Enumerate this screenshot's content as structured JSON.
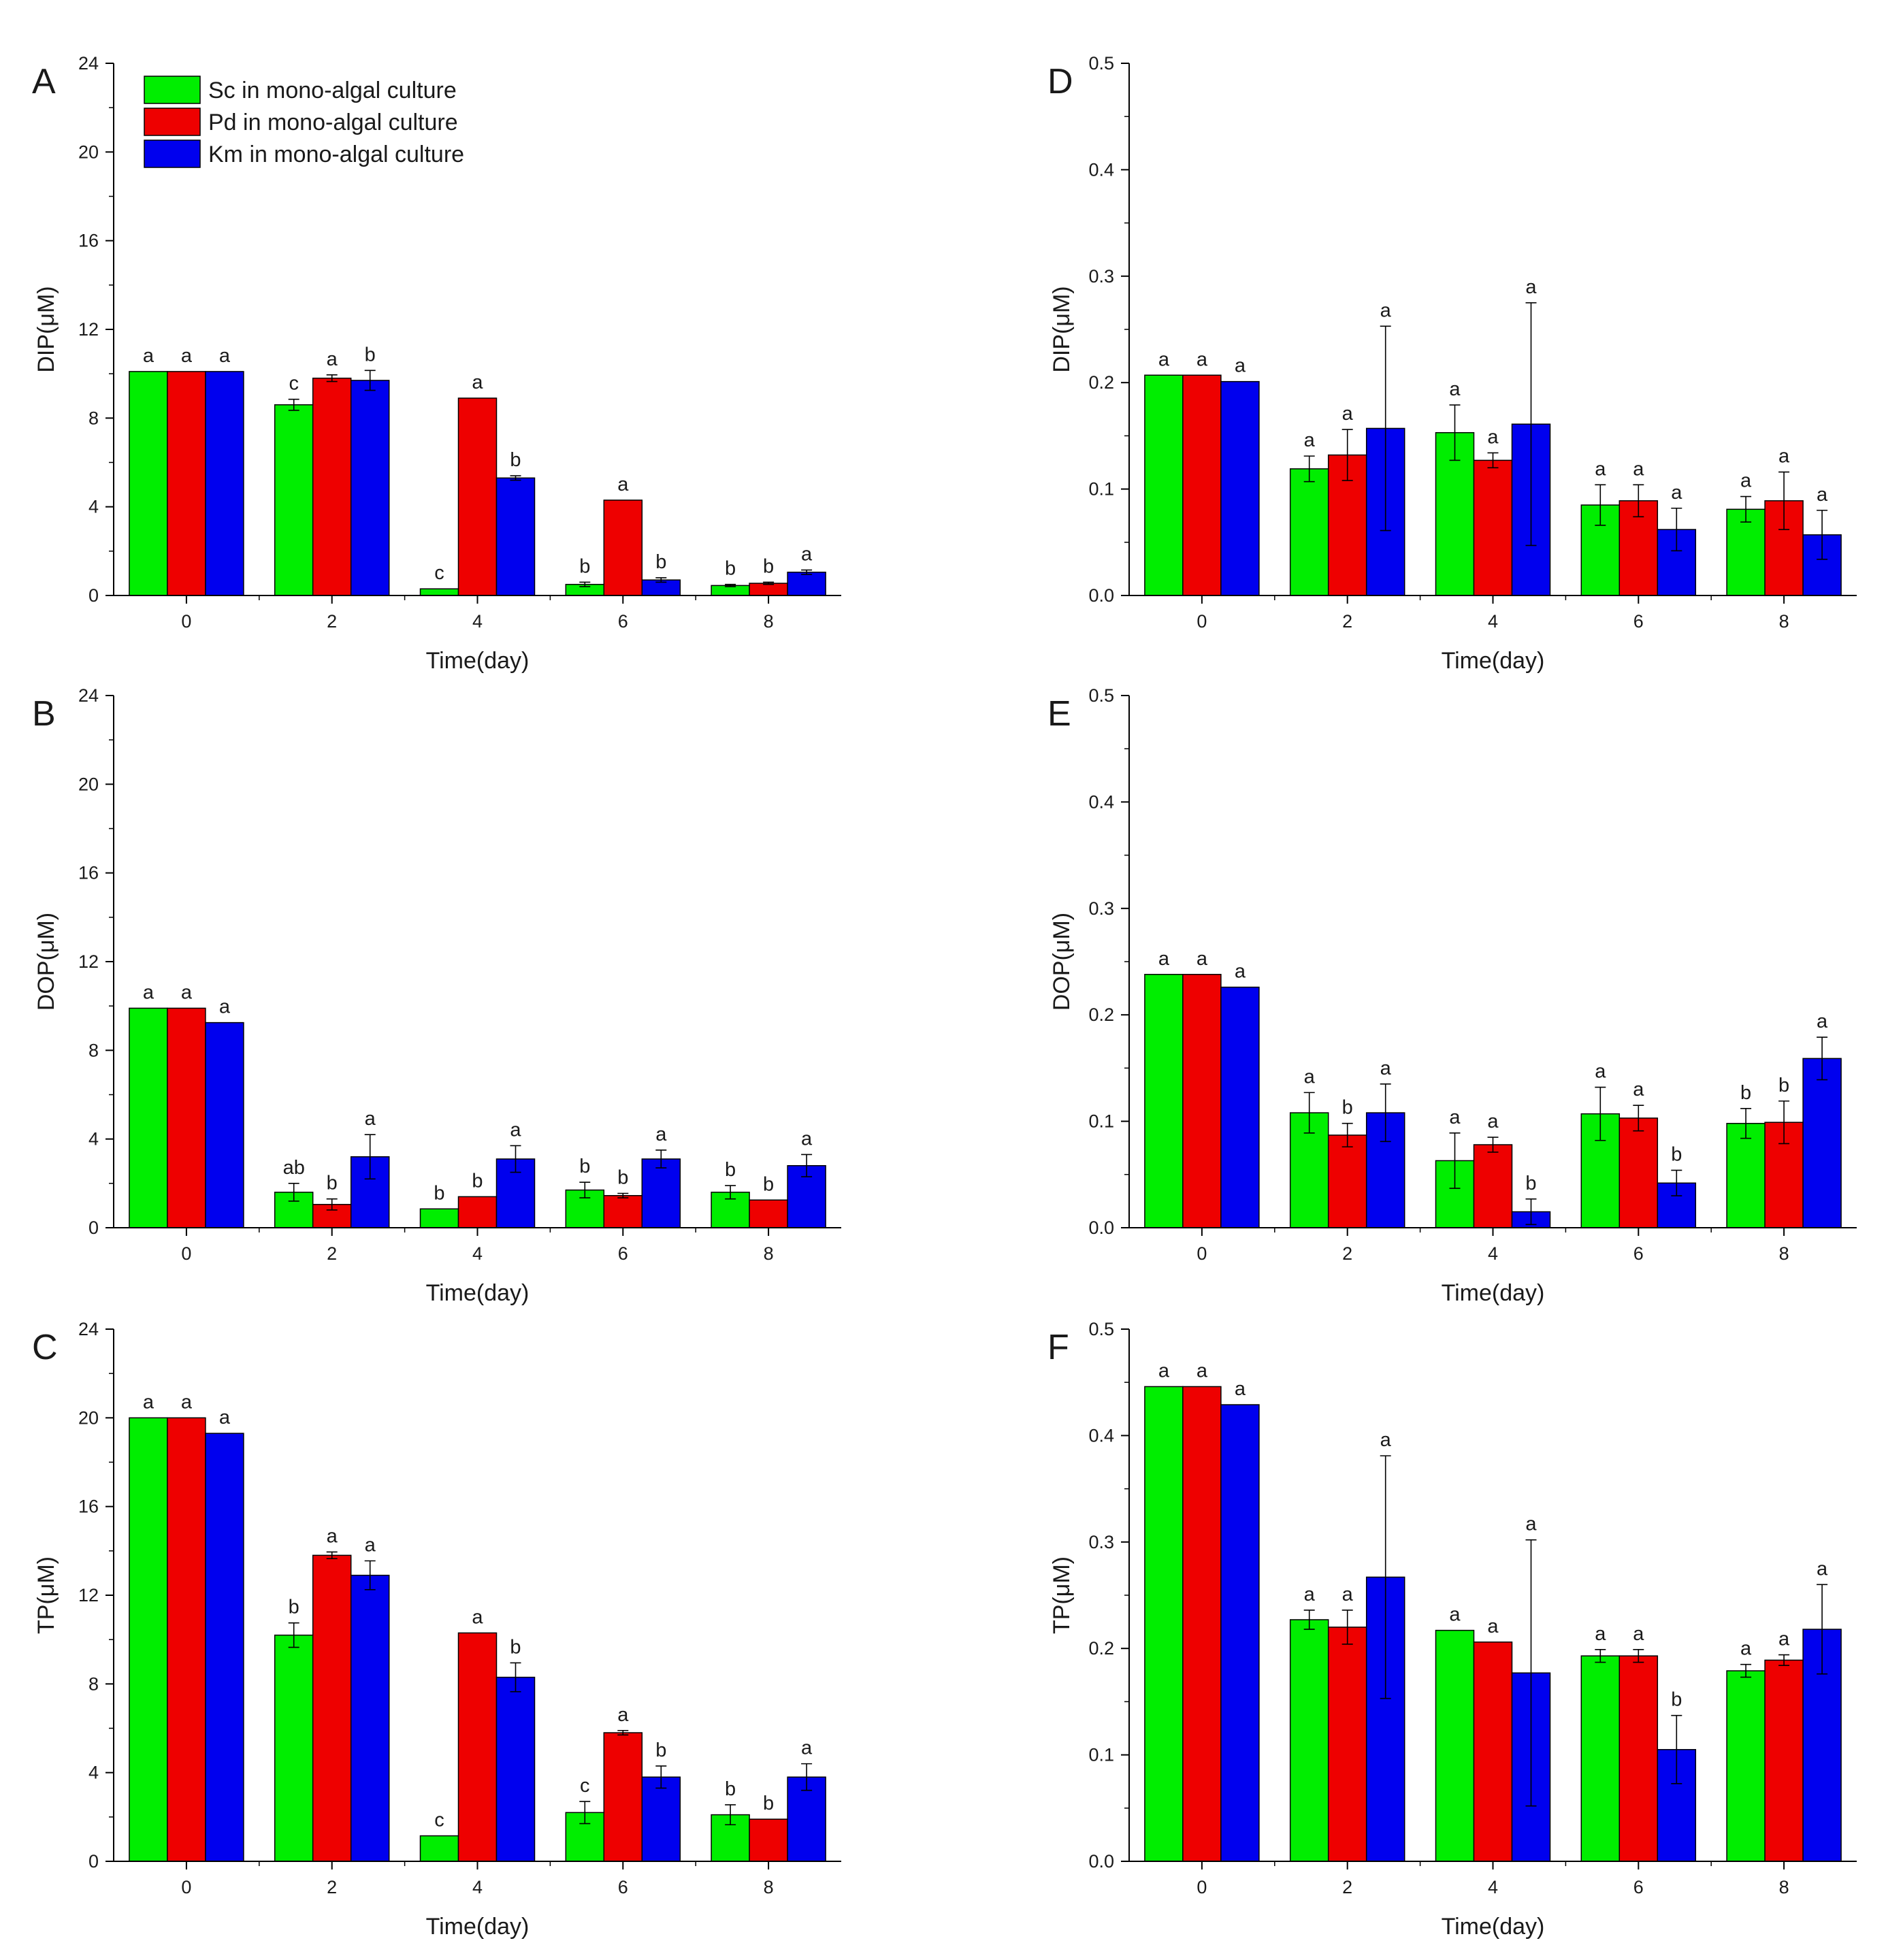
{
  "chart_data": [
    {
      "panel": "A",
      "type": "bar",
      "categories": [
        "0",
        "2",
        "4",
        "6",
        "8"
      ],
      "xlabel": "Time(day)",
      "ylabel": "DIP(μM)",
      "ylim": [
        0,
        24
      ],
      "yticks": [
        "0",
        "4",
        "8",
        "12",
        "16",
        "20",
        "24"
      ],
      "series": [
        {
          "name": "Sc in mono-algal culture",
          "values": [
            10.1,
            8.6,
            0.3,
            0.5,
            0.45
          ],
          "errors": [
            0,
            0.25,
            0,
            0.1,
            0.05
          ],
          "labels": [
            "a",
            "c",
            "c",
            "b",
            "b"
          ]
        },
        {
          "name": "Pd in mono-algal culture",
          "values": [
            10.1,
            9.8,
            8.9,
            4.3,
            0.55
          ],
          "errors": [
            0,
            0.15,
            0,
            0,
            0.05
          ],
          "labels": [
            "a",
            "a",
            "a",
            "a",
            "b"
          ]
        },
        {
          "name": "Km in mono-algal culture",
          "values": [
            10.1,
            9.7,
            5.3,
            0.7,
            1.05
          ],
          "errors": [
            0,
            0.45,
            0.1,
            0.1,
            0.1
          ],
          "labels": [
            "a",
            "b",
            "b",
            "b",
            "a"
          ]
        }
      ]
    },
    {
      "panel": "B",
      "type": "bar",
      "categories": [
        "0",
        "2",
        "4",
        "6",
        "8"
      ],
      "xlabel": "Time(day)",
      "ylabel": "DOP(μM)",
      "ylim": [
        0,
        24
      ],
      "yticks": [
        "0",
        "4",
        "8",
        "12",
        "16",
        "20",
        "24"
      ],
      "series": [
        {
          "name": "Sc in mono-algal culture",
          "values": [
            9.9,
            1.6,
            0.85,
            1.7,
            1.6
          ],
          "errors": [
            0,
            0.4,
            0,
            0.35,
            0.3
          ],
          "labels": [
            "a",
            "ab",
            "b",
            "b",
            "b"
          ]
        },
        {
          "name": "Pd in mono-algal culture",
          "values": [
            9.9,
            1.05,
            1.4,
            1.45,
            1.25
          ],
          "errors": [
            0,
            0.25,
            0,
            0.1,
            0
          ],
          "labels": [
            "a",
            "b",
            "b",
            "b",
            "b"
          ]
        },
        {
          "name": "Km in mono-algal culture",
          "values": [
            9.25,
            3.2,
            3.1,
            3.1,
            2.8
          ],
          "errors": [
            0,
            1.0,
            0.6,
            0.4,
            0.5
          ],
          "labels": [
            "a",
            "a",
            "a",
            "a",
            "a"
          ]
        }
      ]
    },
    {
      "panel": "C",
      "type": "bar",
      "categories": [
        "0",
        "2",
        "4",
        "6",
        "8"
      ],
      "xlabel": "Time(day)",
      "ylabel": "TP(μM)",
      "ylim": [
        0,
        24
      ],
      "yticks": [
        "0",
        "4",
        "8",
        "12",
        "16",
        "20",
        "24"
      ],
      "series": [
        {
          "name": "Sc in mono-algal culture",
          "values": [
            20.0,
            10.2,
            1.15,
            2.2,
            2.1
          ],
          "errors": [
            0,
            0.55,
            0,
            0.5,
            0.45
          ],
          "labels": [
            "a",
            "b",
            "c",
            "c",
            "b"
          ]
        },
        {
          "name": "Pd in mono-algal culture",
          "values": [
            20.0,
            13.8,
            10.3,
            5.8,
            1.9
          ],
          "errors": [
            0,
            0.15,
            0,
            0.1,
            0
          ],
          "labels": [
            "a",
            "a",
            "a",
            "a",
            "b"
          ]
        },
        {
          "name": "Km in mono-algal culture",
          "values": [
            19.3,
            12.9,
            8.3,
            3.8,
            3.8
          ],
          "errors": [
            0,
            0.65,
            0.65,
            0.5,
            0.6
          ],
          "labels": [
            "a",
            "a",
            "b",
            "b",
            "a"
          ]
        }
      ]
    },
    {
      "panel": "D",
      "type": "bar",
      "categories": [
        "0",
        "2",
        "4",
        "6",
        "8"
      ],
      "xlabel": "Time(day)",
      "ylabel": "DIP(μM)",
      "ylim": [
        0,
        0.5
      ],
      "yticks": [
        "0.0",
        "0.1",
        "0.2",
        "0.3",
        "0.4",
        "0.5"
      ],
      "series": [
        {
          "name": "Sc in mono-algal culture",
          "values": [
            0.207,
            0.119,
            0.153,
            0.085,
            0.081
          ],
          "errors": [
            0,
            0.012,
            0.026,
            0.019,
            0.012
          ],
          "labels": [
            "a",
            "a",
            "a",
            "a",
            "a"
          ]
        },
        {
          "name": "Pd in mono-algal culture",
          "values": [
            0.207,
            0.132,
            0.127,
            0.089,
            0.089
          ],
          "errors": [
            0,
            0.024,
            0.007,
            0.015,
            0.027
          ],
          "labels": [
            "a",
            "a",
            "a",
            "a",
            "a"
          ]
        },
        {
          "name": "Km in mono-algal culture",
          "values": [
            0.201,
            0.157,
            0.161,
            0.062,
            0.057
          ],
          "errors": [
            0,
            0.096,
            0.114,
            0.02,
            0.023
          ],
          "labels": [
            "a",
            "a",
            "a",
            "a",
            "a"
          ]
        }
      ]
    },
    {
      "panel": "E",
      "type": "bar",
      "categories": [
        "0",
        "2",
        "4",
        "6",
        "8"
      ],
      "xlabel": "Time(day)",
      "ylabel": "DOP(μM)",
      "ylim": [
        0,
        0.5
      ],
      "yticks": [
        "0.0",
        "0.1",
        "0.2",
        "0.3",
        "0.4",
        "0.5"
      ],
      "series": [
        {
          "name": "Sc in mono-algal culture",
          "values": [
            0.238,
            0.108,
            0.063,
            0.107,
            0.098
          ],
          "errors": [
            0,
            0.019,
            0.026,
            0.025,
            0.014
          ],
          "labels": [
            "a",
            "a",
            "a",
            "a",
            "b"
          ]
        },
        {
          "name": "Pd in mono-algal culture",
          "values": [
            0.238,
            0.087,
            0.078,
            0.103,
            0.099
          ],
          "errors": [
            0,
            0.011,
            0.007,
            0.012,
            0.02
          ],
          "labels": [
            "a",
            "b",
            "a",
            "a",
            "b"
          ]
        },
        {
          "name": "Km in mono-algal culture",
          "values": [
            0.226,
            0.108,
            0.015,
            0.042,
            0.159
          ],
          "errors": [
            0,
            0.027,
            0.012,
            0.012,
            0.02
          ],
          "labels": [
            "a",
            "a",
            "b",
            "b",
            "a"
          ]
        }
      ]
    },
    {
      "panel": "F",
      "type": "bar",
      "categories": [
        "0",
        "2",
        "4",
        "6",
        "8"
      ],
      "xlabel": "Time(day)",
      "ylabel": "TP(μM)",
      "ylim": [
        0,
        0.5
      ],
      "yticks": [
        "0.0",
        "0.1",
        "0.2",
        "0.3",
        "0.4",
        "0.5"
      ],
      "series": [
        {
          "name": "Sc in mono-algal culture",
          "values": [
            0.446,
            0.227,
            0.217,
            0.193,
            0.179
          ],
          "errors": [
            0,
            0.009,
            0,
            0.006,
            0.006
          ],
          "labels": [
            "a",
            "a",
            "a",
            "a",
            "a"
          ]
        },
        {
          "name": "Pd in mono-algal culture",
          "values": [
            0.446,
            0.22,
            0.206,
            0.193,
            0.189
          ],
          "errors": [
            0,
            0.016,
            0,
            0.006,
            0.005
          ],
          "labels": [
            "a",
            "a",
            "a",
            "a",
            "a"
          ]
        },
        {
          "name": "Km in mono-algal culture",
          "values": [
            0.429,
            0.267,
            0.177,
            0.105,
            0.218
          ],
          "errors": [
            0,
            0.114,
            0.125,
            0.032,
            0.042
          ],
          "labels": [
            "a",
            "a",
            "a",
            "b",
            "a"
          ]
        }
      ]
    }
  ],
  "legend": {
    "location": "top-left of panel A",
    "entries": [
      "Sc in mono-algal culture",
      "Pd in mono-algal culture",
      "Km in mono-algal culture"
    ]
  },
  "colors": {
    "series": [
      "#00ee00",
      "#ee0000",
      "#0000ee"
    ],
    "bar_outline": "#000000",
    "axis": "#000000",
    "text": "#1a1a1a"
  }
}
